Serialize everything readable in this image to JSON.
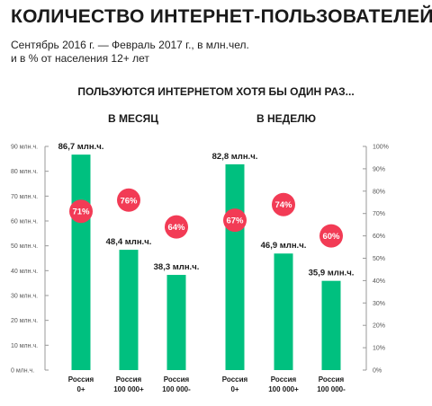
{
  "title": "КОЛИЧЕСТВО ИНТЕРНЕТ-ПОЛЬЗОВАТЕЛЕЙ",
  "subtitle_line1": "Сентябрь 2016 г. — Февраль 2017 г., в млн.чел.",
  "subtitle_line2": "и в % от населения 12+ лет",
  "chart_data": {
    "type": "bar",
    "title": "ПОЛЬЗУЮТСЯ ИНТЕРНЕТОМ ХОТЯ БЫ ОДИН РАЗ...",
    "groups": [
      "В МЕСЯЦ",
      "В НЕДЕЛЮ"
    ],
    "categories": [
      [
        "Россия",
        "0+"
      ],
      [
        "Россия",
        "100 000+"
      ],
      [
        "Россия",
        "100 000-"
      ]
    ],
    "series": [
      {
        "name": "В МЕСЯЦ",
        "values": [
          86.7,
          48.4,
          38.3
        ],
        "value_labels": [
          "86,7 млн.ч.",
          "48,4 млн.ч.",
          "38,3 млн.ч."
        ],
        "percent": [
          71,
          76,
          64
        ],
        "percent_labels": [
          "71%",
          "76%",
          "64%"
        ]
      },
      {
        "name": "В НЕДЕЛЮ",
        "values": [
          82.8,
          46.9,
          35.9
        ],
        "value_labels": [
          "82,8 млн.ч.",
          "46,9 млн.ч.",
          "35,9 млн.ч."
        ],
        "percent": [
          67,
          74,
          60
        ],
        "percent_labels": [
          "67%",
          "74%",
          "60%"
        ]
      }
    ],
    "ylim_left": [
      0,
      90
    ],
    "yticks_left": [
      "0 млн.ч.",
      "10 млн.ч.",
      "20 млн.ч.",
      "30 млн.ч.",
      "40 млн.ч.",
      "50 млн.ч.",
      "60 млн.ч.",
      "70 млн.ч.",
      "80 млн.ч.",
      "90 млн.ч."
    ],
    "ylim_right": [
      0,
      100
    ],
    "yticks_right": [
      "0%",
      "10%",
      "20%",
      "30%",
      "40%",
      "50%",
      "60%",
      "70%",
      "80%",
      "90%",
      "100%"
    ],
    "colors": {
      "bar": "#00c07f",
      "circle": "#f23b55",
      "axis": "#999999",
      "text": "#1a1a1a"
    }
  }
}
